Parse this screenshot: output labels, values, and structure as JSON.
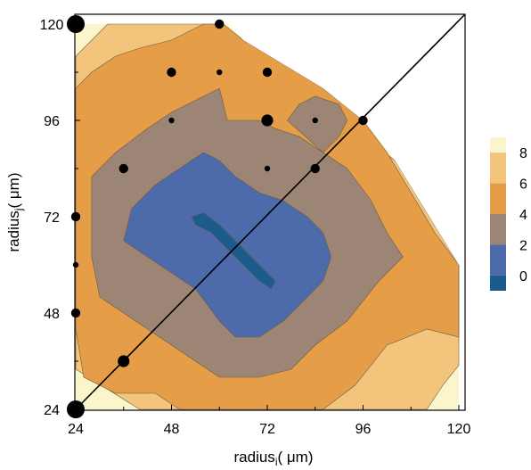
{
  "chart_data": {
    "type": "contour",
    "xlabel": {
      "main": "radius",
      "sub": "i",
      "rest": "( μm)"
    },
    "ylabel": {
      "main": "radius",
      "sub": "j",
      "rest": "( μm)"
    },
    "xlim": [
      24,
      120
    ],
    "ylim": [
      24,
      120
    ],
    "xticks": [
      "24",
      "48",
      "72",
      "96",
      "120"
    ],
    "yticks": [
      "24",
      "48",
      "72",
      "96",
      "120"
    ],
    "diagonal_line": [
      [
        24,
        24
      ],
      [
        120,
        120
      ]
    ],
    "colorbar": {
      "ticks": [
        "8",
        "6",
        "4",
        "2",
        "0"
      ],
      "levels": [
        {
          "range": [
            8,
            9
          ],
          "color": "#fbf5cc"
        },
        {
          "range": [
            6,
            8
          ],
          "color": "#f2c47c"
        },
        {
          "range": [
            4,
            6
          ],
          "color": "#e59d48"
        },
        {
          "range": [
            2,
            4
          ],
          "color": "#9c8575"
        },
        {
          "range": [
            0,
            2
          ],
          "color": "#4d6bab"
        },
        {
          "range": [
            -1,
            0
          ],
          "color": "#1b5c8d"
        }
      ]
    },
    "contour_regions": [
      {
        "level": 8,
        "color": "#fbf5cc",
        "points": [
          [
            24,
            24
          ],
          [
            24,
            120
          ],
          [
            120,
            120
          ],
          [
            120,
            24
          ]
        ]
      },
      {
        "level": 6,
        "color": "#f2c47c",
        "points": [
          [
            24,
            34
          ],
          [
            24,
            112
          ],
          [
            32,
            120
          ],
          [
            48,
            120
          ],
          [
            60,
            120
          ],
          [
            64,
            112
          ],
          [
            76,
            110
          ],
          [
            86,
            100
          ],
          [
            104,
            86
          ],
          [
            120,
            60
          ],
          [
            120,
            35
          ],
          [
            116,
            30
          ],
          [
            112,
            24
          ],
          [
            40,
            24
          ]
        ]
      },
      {
        "level": 4,
        "color": "#e59d48",
        "points": [
          [
            24,
            44
          ],
          [
            24,
            104
          ],
          [
            28,
            108
          ],
          [
            34,
            112
          ],
          [
            40,
            114
          ],
          [
            48,
            116
          ],
          [
            56,
            120
          ],
          [
            61,
            120
          ],
          [
            66,
            116
          ],
          [
            76,
            110
          ],
          [
            86,
            104
          ],
          [
            96,
            96
          ],
          [
            102,
            88
          ],
          [
            108,
            78
          ],
          [
            114,
            68
          ],
          [
            120,
            60
          ],
          [
            120,
            42
          ],
          [
            112,
            44
          ],
          [
            102,
            40
          ],
          [
            94,
            30
          ],
          [
            86,
            24
          ],
          [
            50,
            24
          ],
          [
            44,
            28
          ],
          [
            34,
            28
          ],
          [
            26,
            32
          ]
        ]
      },
      {
        "level": 2,
        "color": "#9c8575",
        "points": [
          [
            28,
            62
          ],
          [
            28,
            82
          ],
          [
            34,
            88
          ],
          [
            42,
            94
          ],
          [
            48,
            98
          ],
          [
            56,
            102
          ],
          [
            60,
            104
          ],
          [
            62,
            96
          ],
          [
            70,
            96
          ],
          [
            74,
            94
          ],
          [
            80,
            92
          ],
          [
            86,
            88
          ],
          [
            92,
            84
          ],
          [
            98,
            76
          ],
          [
            102,
            68
          ],
          [
            106,
            62
          ],
          [
            100,
            56
          ],
          [
            92,
            46
          ],
          [
            84,
            40
          ],
          [
            78,
            34
          ],
          [
            70,
            32
          ],
          [
            60,
            32
          ],
          [
            54,
            36
          ],
          [
            48,
            40
          ],
          [
            42,
            44
          ],
          [
            36,
            48
          ],
          [
            30,
            52
          ]
        ]
      },
      {
        "level": 0,
        "color": "#4d6bab",
        "points": [
          [
            36,
            66
          ],
          [
            38,
            74
          ],
          [
            44,
            80
          ],
          [
            50,
            84
          ],
          [
            56,
            88
          ],
          [
            60,
            86
          ],
          [
            64,
            82
          ],
          [
            70,
            78
          ],
          [
            76,
            76
          ],
          [
            82,
            72
          ],
          [
            86,
            68
          ],
          [
            88,
            62
          ],
          [
            86,
            56
          ],
          [
            82,
            52
          ],
          [
            76,
            46
          ],
          [
            70,
            42
          ],
          [
            64,
            42
          ],
          [
            60,
            46
          ],
          [
            54,
            54
          ],
          [
            48,
            58
          ],
          [
            42,
            62
          ]
        ]
      },
      {
        "level": -1,
        "color": "#1b5c8d",
        "points": [
          [
            53,
            72
          ],
          [
            56,
            73
          ],
          [
            60,
            70
          ],
          [
            64,
            66
          ],
          [
            68,
            62
          ],
          [
            72,
            58
          ],
          [
            74,
            56
          ],
          [
            73,
            54
          ],
          [
            70,
            56
          ],
          [
            66,
            60
          ],
          [
            62,
            64
          ],
          [
            58,
            68
          ],
          [
            54,
            70
          ]
        ]
      },
      {
        "level": 2,
        "color": "#9c8575",
        "points": [
          [
            77,
            96
          ],
          [
            80,
            100
          ],
          [
            84,
            102
          ],
          [
            90,
            100
          ],
          [
            92,
            96
          ],
          [
            90,
            92
          ],
          [
            86,
            88
          ]
        ]
      }
    ],
    "points": [
      {
        "x": 24,
        "y": 120,
        "size": "large"
      },
      {
        "x": 60,
        "y": 120,
        "size": "medium"
      },
      {
        "x": 48,
        "y": 108,
        "size": "medium"
      },
      {
        "x": 60,
        "y": 108,
        "size": "small"
      },
      {
        "x": 72,
        "y": 108,
        "size": "medium"
      },
      {
        "x": 48,
        "y": 96,
        "size": "small"
      },
      {
        "x": 72,
        "y": 96,
        "size": "medium-large"
      },
      {
        "x": 84,
        "y": 96,
        "size": "small"
      },
      {
        "x": 96,
        "y": 96,
        "size": "medium"
      },
      {
        "x": 36,
        "y": 84,
        "size": "medium"
      },
      {
        "x": 72,
        "y": 84,
        "size": "small"
      },
      {
        "x": 84,
        "y": 84,
        "size": "medium"
      },
      {
        "x": 24,
        "y": 72,
        "size": "medium"
      },
      {
        "x": 24,
        "y": 60,
        "size": "small"
      },
      {
        "x": 24,
        "y": 48,
        "size": "medium"
      },
      {
        "x": 36,
        "y": 36,
        "size": "medium-large"
      },
      {
        "x": 24,
        "y": 24,
        "size": "large"
      }
    ]
  }
}
